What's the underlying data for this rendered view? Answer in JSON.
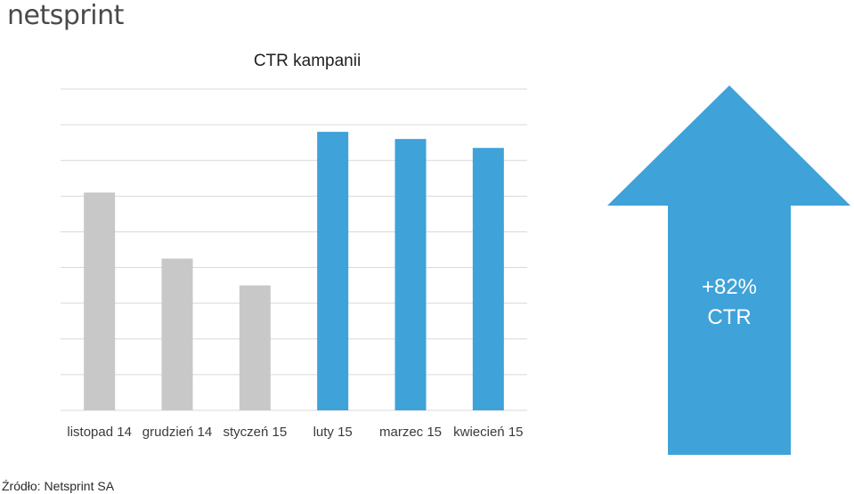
{
  "logo": "netsprint",
  "source": "Źródło: Netsprint SA",
  "arrow": {
    "line1": "+82%",
    "line2": "CTR",
    "color": "#3fa2d9"
  },
  "colors": {
    "before": "#c8c8c8",
    "after": "#3fa2d9",
    "grid": "#d9d9d9"
  },
  "chart_data": {
    "type": "bar",
    "title": "CTR kampanii",
    "categories": [
      "listopad 14",
      "grudzień 14",
      "styczeń 15",
      "luty 15",
      "marzec 15",
      "kwiecień 15"
    ],
    "values": [
      6.1,
      4.25,
      3.5,
      7.8,
      7.6,
      7.35
    ],
    "highlight": [
      false,
      false,
      false,
      true,
      true,
      true
    ],
    "ylim": [
      0,
      9
    ],
    "grid": true,
    "gridlines": 9
  }
}
